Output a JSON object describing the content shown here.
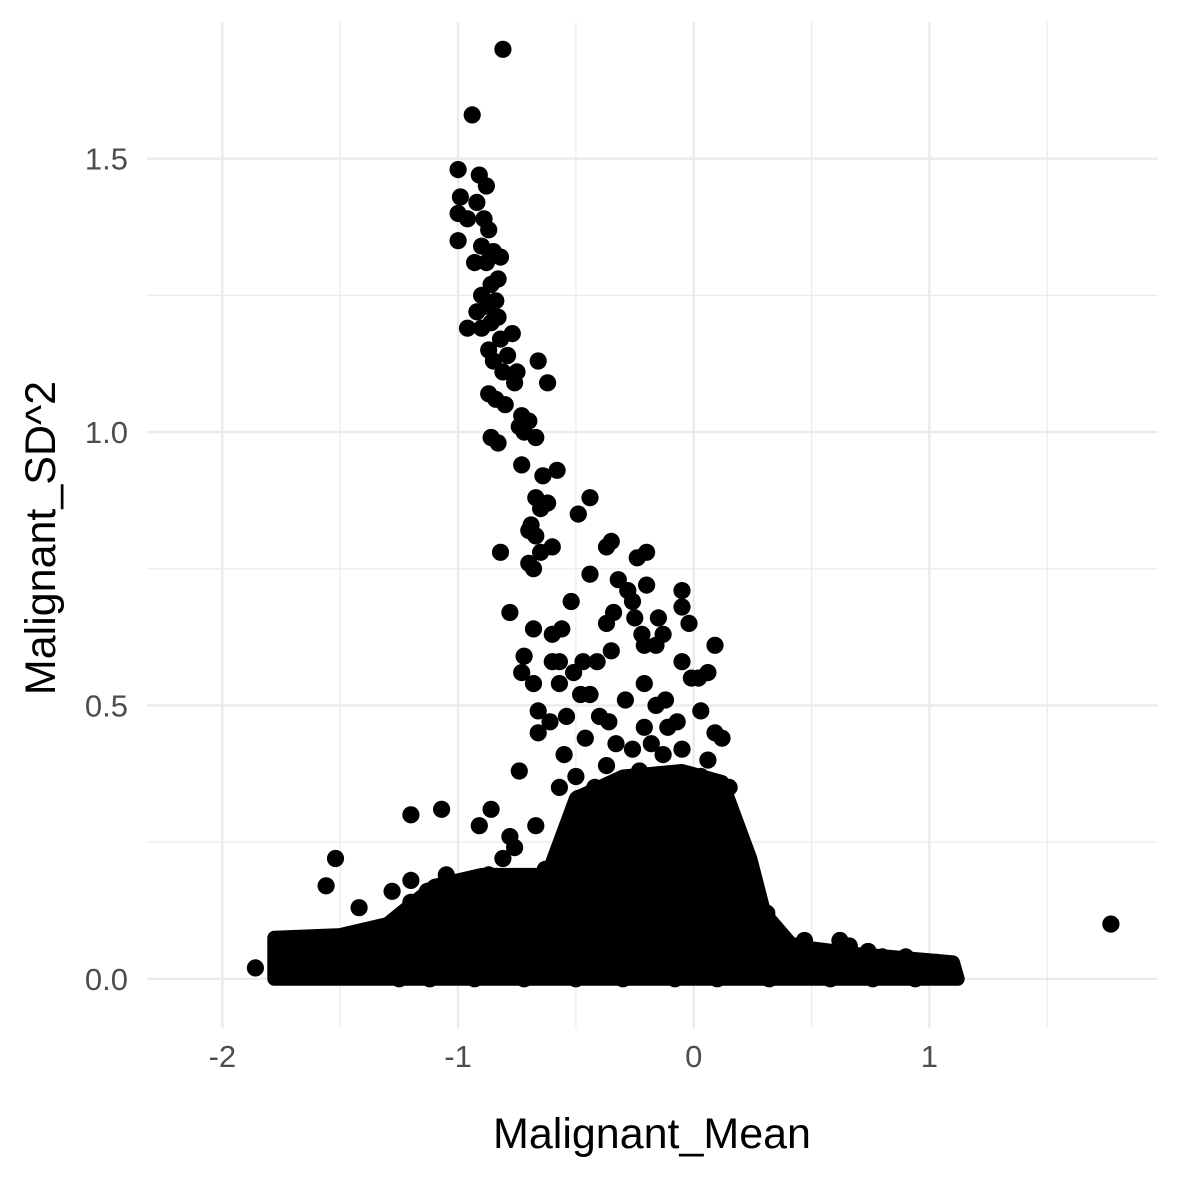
{
  "chart_data": {
    "type": "scatter",
    "title": "",
    "xlabel": "Malignant_Mean",
    "ylabel": "Malignant_SD^2",
    "xlim": [
      -2.32,
      1.97
    ],
    "ylim": [
      -0.09,
      1.75
    ],
    "x_ticks": [
      {
        "value": -2,
        "label": "-2"
      },
      {
        "value": -1,
        "label": "-1"
      },
      {
        "value": 0,
        "label": "0"
      },
      {
        "value": 1,
        "label": "1"
      }
    ],
    "x_minor_ticks": [
      -1.5,
      -0.5,
      0.5,
      1.5
    ],
    "y_ticks": [
      {
        "value": 0.0,
        "label": "0.0"
      },
      {
        "value": 0.5,
        "label": "0.5"
      },
      {
        "value": 1.0,
        "label": "1.0"
      },
      {
        "value": 1.5,
        "label": "1.5"
      }
    ],
    "y_minor_ticks": [
      0.25,
      0.75,
      1.25
    ],
    "grid": true,
    "legend": "none",
    "point_color": "#000000",
    "points": [
      [
        -0.81,
        1.7
      ],
      [
        -0.94,
        1.58
      ],
      [
        -1.0,
        1.48
      ],
      [
        -0.91,
        1.47
      ],
      [
        -0.88,
        1.45
      ],
      [
        -0.99,
        1.43
      ],
      [
        -0.92,
        1.42
      ],
      [
        -1.0,
        1.4
      ],
      [
        -0.96,
        1.39
      ],
      [
        -0.89,
        1.39
      ],
      [
        -0.87,
        1.37
      ],
      [
        -1.0,
        1.35
      ],
      [
        -0.9,
        1.34
      ],
      [
        -0.85,
        1.33
      ],
      [
        -0.82,
        1.32
      ],
      [
        -0.88,
        1.31
      ],
      [
        -0.93,
        1.31
      ],
      [
        -0.83,
        1.28
      ],
      [
        -0.86,
        1.27
      ],
      [
        -0.9,
        1.25
      ],
      [
        -0.84,
        1.24
      ],
      [
        -0.88,
        1.23
      ],
      [
        -0.92,
        1.22
      ],
      [
        -0.83,
        1.21
      ],
      [
        -0.86,
        1.2
      ],
      [
        -0.96,
        1.19
      ],
      [
        -0.9,
        1.19
      ],
      [
        -0.77,
        1.18
      ],
      [
        -0.82,
        1.17
      ],
      [
        -0.87,
        1.15
      ],
      [
        -0.79,
        1.14
      ],
      [
        -0.66,
        1.13
      ],
      [
        -0.85,
        1.13
      ],
      [
        -0.75,
        1.11
      ],
      [
        -0.81,
        1.11
      ],
      [
        -0.76,
        1.09
      ],
      [
        -0.62,
        1.09
      ],
      [
        -0.87,
        1.07
      ],
      [
        -0.84,
        1.06
      ],
      [
        -0.8,
        1.05
      ],
      [
        -0.73,
        1.03
      ],
      [
        -0.7,
        1.02
      ],
      [
        -0.74,
        1.01
      ],
      [
        -0.72,
        1.0
      ],
      [
        -0.67,
        0.99
      ],
      [
        -0.86,
        0.99
      ],
      [
        -0.83,
        0.98
      ],
      [
        -0.73,
        0.94
      ],
      [
        -0.58,
        0.93
      ],
      [
        -0.64,
        0.92
      ],
      [
        -0.44,
        0.88
      ],
      [
        -0.67,
        0.88
      ],
      [
        -0.62,
        0.87
      ],
      [
        -0.65,
        0.86
      ],
      [
        -0.49,
        0.85
      ],
      [
        -0.69,
        0.83
      ],
      [
        -0.7,
        0.82
      ],
      [
        -0.67,
        0.81
      ],
      [
        -0.35,
        0.8
      ],
      [
        -0.37,
        0.79
      ],
      [
        -0.6,
        0.79
      ],
      [
        -0.82,
        0.78
      ],
      [
        -0.65,
        0.78
      ],
      [
        -0.2,
        0.78
      ],
      [
        -0.24,
        0.77
      ],
      [
        -0.7,
        0.76
      ],
      [
        -0.68,
        0.75
      ],
      [
        -0.44,
        0.74
      ],
      [
        -0.32,
        0.73
      ],
      [
        -0.2,
        0.72
      ],
      [
        -0.28,
        0.71
      ],
      [
        -0.05,
        0.71
      ],
      [
        -0.26,
        0.69
      ],
      [
        -0.52,
        0.69
      ],
      [
        -0.78,
        0.67
      ],
      [
        -0.05,
        0.68
      ],
      [
        -0.34,
        0.67
      ],
      [
        -0.15,
        0.66
      ],
      [
        -0.25,
        0.66
      ],
      [
        -0.37,
        0.65
      ],
      [
        -0.02,
        0.65
      ],
      [
        -0.68,
        0.64
      ],
      [
        -0.56,
        0.64
      ],
      [
        -0.13,
        0.63
      ],
      [
        -0.22,
        0.63
      ],
      [
        -0.6,
        0.63
      ],
      [
        -0.21,
        0.61
      ],
      [
        0.09,
        0.61
      ],
      [
        -0.16,
        0.61
      ],
      [
        -0.35,
        0.6
      ],
      [
        -0.72,
        0.59
      ],
      [
        -0.6,
        0.58
      ],
      [
        -0.47,
        0.58
      ],
      [
        -0.05,
        0.58
      ],
      [
        -0.41,
        0.58
      ],
      [
        -0.57,
        0.58
      ],
      [
        -0.73,
        0.56
      ],
      [
        0.06,
        0.56
      ],
      [
        -0.51,
        0.56
      ],
      [
        -0.01,
        0.55
      ],
      [
        0.02,
        0.55
      ],
      [
        -0.21,
        0.54
      ],
      [
        -0.68,
        0.54
      ],
      [
        -0.57,
        0.54
      ],
      [
        -0.44,
        0.52
      ],
      [
        -0.48,
        0.52
      ],
      [
        -0.12,
        0.51
      ],
      [
        -0.29,
        0.51
      ],
      [
        -0.16,
        0.5
      ],
      [
        -0.66,
        0.49
      ],
      [
        0.03,
        0.49
      ],
      [
        -0.54,
        0.48
      ],
      [
        -0.4,
        0.48
      ],
      [
        -0.36,
        0.47
      ],
      [
        -0.07,
        0.47
      ],
      [
        -0.61,
        0.47
      ],
      [
        -0.21,
        0.46
      ],
      [
        -0.11,
        0.46
      ],
      [
        0.09,
        0.45
      ],
      [
        -0.46,
        0.44
      ],
      [
        -0.66,
        0.45
      ],
      [
        -0.33,
        0.43
      ],
      [
        -0.18,
        0.43
      ],
      [
        0.12,
        0.44
      ],
      [
        -0.26,
        0.42
      ],
      [
        -0.05,
        0.42
      ],
      [
        -0.55,
        0.41
      ],
      [
        -0.13,
        0.41
      ],
      [
        0.06,
        0.4
      ],
      [
        -0.37,
        0.39
      ],
      [
        -0.23,
        0.38
      ],
      [
        -0.74,
        0.38
      ],
      [
        -0.5,
        0.37
      ],
      [
        0.03,
        0.37
      ],
      [
        -0.09,
        0.36
      ],
      [
        -0.32,
        0.36
      ],
      [
        -0.57,
        0.35
      ],
      [
        -0.42,
        0.35
      ],
      [
        0.15,
        0.35
      ],
      [
        -0.19,
        0.34
      ],
      [
        -0.02,
        0.33
      ],
      [
        -0.49,
        0.33
      ],
      [
        -0.28,
        0.32
      ],
      [
        0.11,
        0.32
      ],
      [
        -1.07,
        0.31
      ],
      [
        -0.86,
        0.31
      ],
      [
        -1.2,
        0.3
      ],
      [
        -0.46,
        0.3
      ],
      [
        -0.14,
        0.3
      ],
      [
        0.05,
        0.29
      ],
      [
        -0.35,
        0.29
      ],
      [
        -0.67,
        0.28
      ],
      [
        -0.91,
        0.28
      ],
      [
        -0.23,
        0.28
      ],
      [
        -0.52,
        0.26
      ],
      [
        -0.08,
        0.27
      ],
      [
        0.17,
        0.26
      ],
      [
        -0.78,
        0.26
      ],
      [
        -0.37,
        0.25
      ],
      [
        -0.29,
        0.24
      ],
      [
        -0.15,
        0.24
      ],
      [
        0.01,
        0.25
      ],
      [
        0.11,
        0.23
      ],
      [
        -0.76,
        0.24
      ],
      [
        -0.44,
        0.23
      ],
      [
        -0.58,
        0.22
      ],
      [
        -0.81,
        0.22
      ],
      [
        0.22,
        0.22
      ],
      [
        -0.21,
        0.21
      ],
      [
        -0.33,
        0.21
      ],
      [
        -0.07,
        0.21
      ],
      [
        0.08,
        0.21
      ],
      [
        -1.52,
        0.22
      ],
      [
        -0.63,
        0.2
      ],
      [
        -0.49,
        0.19
      ],
      [
        -1.05,
        0.19
      ],
      [
        -0.87,
        0.19
      ],
      [
        -1.2,
        0.18
      ],
      [
        -0.72,
        0.18
      ],
      [
        -0.39,
        0.18
      ],
      [
        0.14,
        0.18
      ],
      [
        -1.0,
        0.17
      ],
      [
        -1.56,
        0.17
      ],
      [
        -0.58,
        0.17
      ],
      [
        -0.28,
        0.17
      ],
      [
        0.04,
        0.17
      ],
      [
        0.26,
        0.17
      ],
      [
        -1.28,
        0.16
      ],
      [
        -1.13,
        0.16
      ],
      [
        -0.92,
        0.16
      ],
      [
        -0.77,
        0.16
      ],
      [
        -0.46,
        0.16
      ],
      [
        -0.17,
        0.16
      ],
      [
        -1.2,
        0.14
      ],
      [
        -0.66,
        0.15
      ],
      [
        -0.34,
        0.15
      ],
      [
        0.09,
        0.15
      ],
      [
        -1.05,
        0.14
      ],
      [
        -0.86,
        0.14
      ],
      [
        -0.53,
        0.14
      ],
      [
        -0.22,
        0.14
      ],
      [
        0.19,
        0.14
      ],
      [
        -1.42,
        0.13
      ],
      [
        -0.97,
        0.13
      ],
      [
        -0.74,
        0.13
      ],
      [
        -0.41,
        0.13
      ],
      [
        -0.09,
        0.13
      ],
      [
        0.31,
        0.12
      ],
      [
        -1.15,
        0.12
      ],
      [
        -0.63,
        0.12
      ],
      [
        -0.28,
        0.12
      ],
      [
        0.02,
        0.12
      ],
      [
        0.24,
        0.11
      ],
      [
        -1.26,
        0.11
      ],
      [
        -0.88,
        0.11
      ],
      [
        -0.55,
        0.11
      ],
      [
        -0.15,
        0.11
      ],
      [
        0.12,
        0.11
      ],
      [
        -1.1,
        0.1
      ],
      [
        -0.7,
        0.1
      ],
      [
        -0.37,
        0.1
      ],
      [
        -0.03,
        0.1
      ],
      [
        0.35,
        0.09
      ],
      [
        1.77,
        0.1
      ],
      [
        -1.34,
        0.09
      ],
      [
        -0.96,
        0.09
      ],
      [
        -0.61,
        0.09
      ],
      [
        -0.23,
        0.09
      ],
      [
        0.19,
        0.09
      ],
      [
        -1.2,
        0.08
      ],
      [
        -0.82,
        0.08
      ],
      [
        -0.46,
        0.08
      ],
      [
        -0.1,
        0.08
      ],
      [
        0.28,
        0.08
      ],
      [
        -1.43,
        0.07
      ],
      [
        -1.05,
        0.07
      ],
      [
        -0.69,
        0.07
      ],
      [
        -0.32,
        0.07
      ],
      [
        0.05,
        0.07
      ],
      [
        0.44,
        0.06
      ],
      [
        -1.75,
        0.07
      ],
      [
        -1.68,
        0.06
      ],
      [
        -1.59,
        0.06
      ],
      [
        -1.5,
        0.06
      ],
      [
        -1.3,
        0.06
      ],
      [
        -0.91,
        0.06
      ],
      [
        -0.55,
        0.06
      ],
      [
        -0.18,
        0.06
      ],
      [
        0.22,
        0.06
      ],
      [
        0.62,
        0.07
      ],
      [
        0.66,
        0.06
      ],
      [
        0.47,
        0.07
      ],
      [
        -1.62,
        0.05
      ],
      [
        -1.38,
        0.05
      ],
      [
        -1.16,
        0.05
      ],
      [
        -0.77,
        0.05
      ],
      [
        -0.4,
        0.05
      ],
      [
        0.01,
        0.05
      ],
      [
        0.36,
        0.05
      ],
      [
        0.55,
        0.05
      ],
      [
        0.74,
        0.05
      ],
      [
        -1.7,
        0.04
      ],
      [
        -1.47,
        0.04
      ],
      [
        -1.24,
        0.04
      ],
      [
        -1.0,
        0.04
      ],
      [
        -0.63,
        0.04
      ],
      [
        -0.26,
        0.04
      ],
      [
        0.12,
        0.04
      ],
      [
        0.48,
        0.04
      ],
      [
        0.8,
        0.04
      ],
      [
        0.9,
        0.04
      ],
      [
        -1.56,
        0.03
      ],
      [
        -1.33,
        0.03
      ],
      [
        -1.1,
        0.03
      ],
      [
        -0.86,
        0.03
      ],
      [
        -0.49,
        0.03
      ],
      [
        -0.12,
        0.03
      ],
      [
        0.27,
        0.03
      ],
      [
        0.6,
        0.03
      ],
      [
        0.86,
        0.03
      ],
      [
        1.03,
        0.03
      ],
      [
        -1.45,
        0.02
      ],
      [
        -1.2,
        0.02
      ],
      [
        -0.97,
        0.02
      ],
      [
        -0.72,
        0.02
      ],
      [
        -0.35,
        0.02
      ],
      [
        0.03,
        0.02
      ],
      [
        0.4,
        0.02
      ],
      [
        0.7,
        0.02
      ],
      [
        0.96,
        0.02
      ],
      [
        1.08,
        0.02
      ],
      [
        -1.86,
        0.02
      ],
      [
        -1.52,
        0.015
      ],
      [
        -1.3,
        0.01
      ],
      [
        -1.05,
        0.01
      ],
      [
        -0.84,
        0.01
      ],
      [
        -0.6,
        0.01
      ],
      [
        -0.22,
        0.01
      ],
      [
        0.16,
        0.01
      ],
      [
        0.52,
        0.01
      ],
      [
        0.82,
        0.01
      ],
      [
        1.1,
        0.015
      ],
      [
        -1.45,
        0.005
      ],
      [
        -1.25,
        0.0
      ],
      [
        -1.12,
        0.0
      ],
      [
        -0.93,
        0.0
      ],
      [
        -0.72,
        0.0
      ],
      [
        -0.5,
        0.0
      ],
      [
        -0.3,
        0.0
      ],
      [
        -0.08,
        0.0
      ],
      [
        0.1,
        0.0
      ],
      [
        0.32,
        0.0
      ],
      [
        0.58,
        0.0
      ],
      [
        0.76,
        0.0
      ],
      [
        0.94,
        0.0
      ]
    ]
  }
}
